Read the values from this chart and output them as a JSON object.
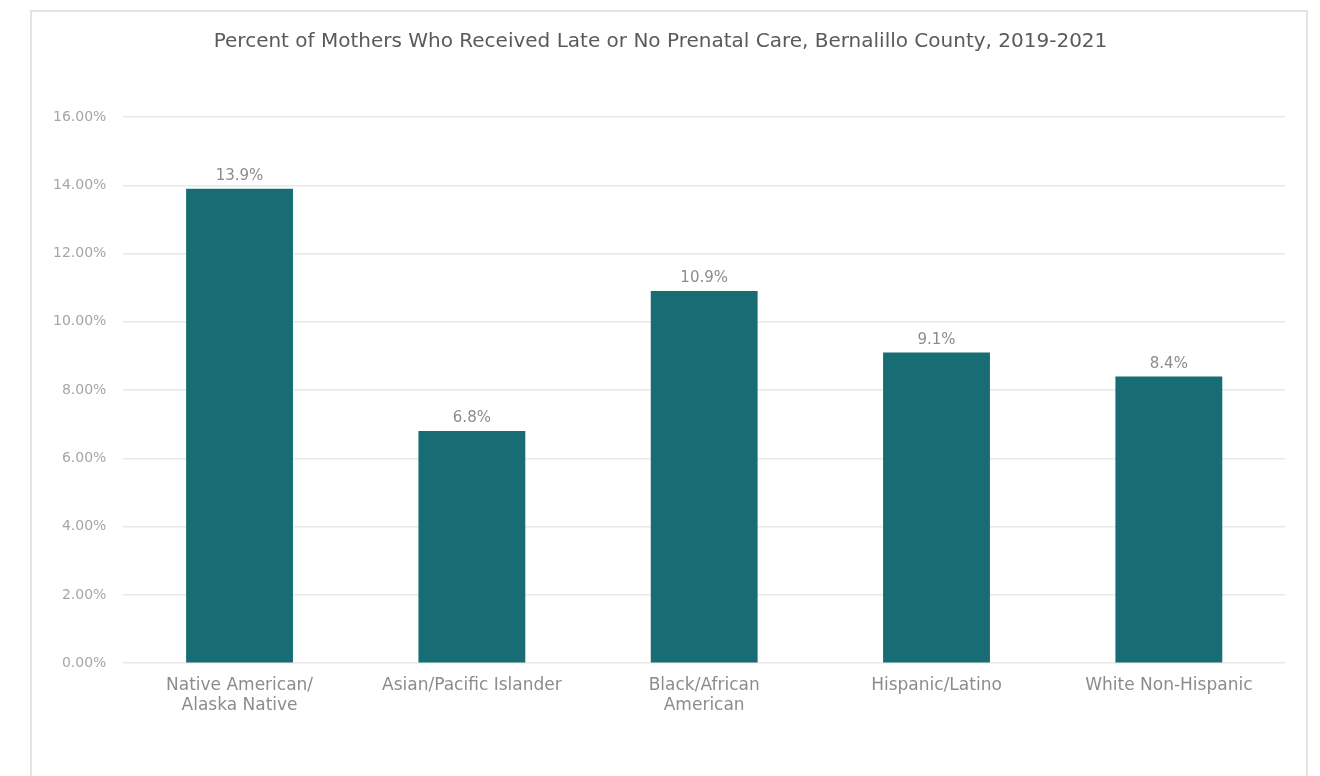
{
  "chart_data": {
    "type": "bar",
    "title": "Percent of Mothers Who Received Late or No Prenatal Care, Bernalillo County, 2019-2021",
    "categories": [
      "Native American/Alaska Native",
      "Asian/Pacific Islander",
      "Black/African American",
      "Hispanic/Latino",
      "White Non-Hispanic"
    ],
    "values": [
      13.9,
      6.8,
      10.9,
      9.1,
      8.4
    ],
    "value_labels": [
      "13.9%",
      "6.8%",
      "10.9%",
      "9.1%",
      "8.4%"
    ],
    "color": "#176d73",
    "ylim": [
      0,
      16
    ],
    "yticks": [
      {
        "value": 0,
        "label": "0.00%"
      },
      {
        "value": 2,
        "label": "2.00%"
      },
      {
        "value": 4,
        "label": "4.00%"
      },
      {
        "value": 6,
        "label": "6.00%"
      },
      {
        "value": 8,
        "label": "8.00%"
      },
      {
        "value": 10,
        "label": "10.00%"
      },
      {
        "value": 12,
        "label": "12.00%"
      },
      {
        "value": 14,
        "label": "14.00%"
      },
      {
        "value": 16,
        "label": "16.00%"
      }
    ],
    "grid": "y",
    "legend": false
  }
}
